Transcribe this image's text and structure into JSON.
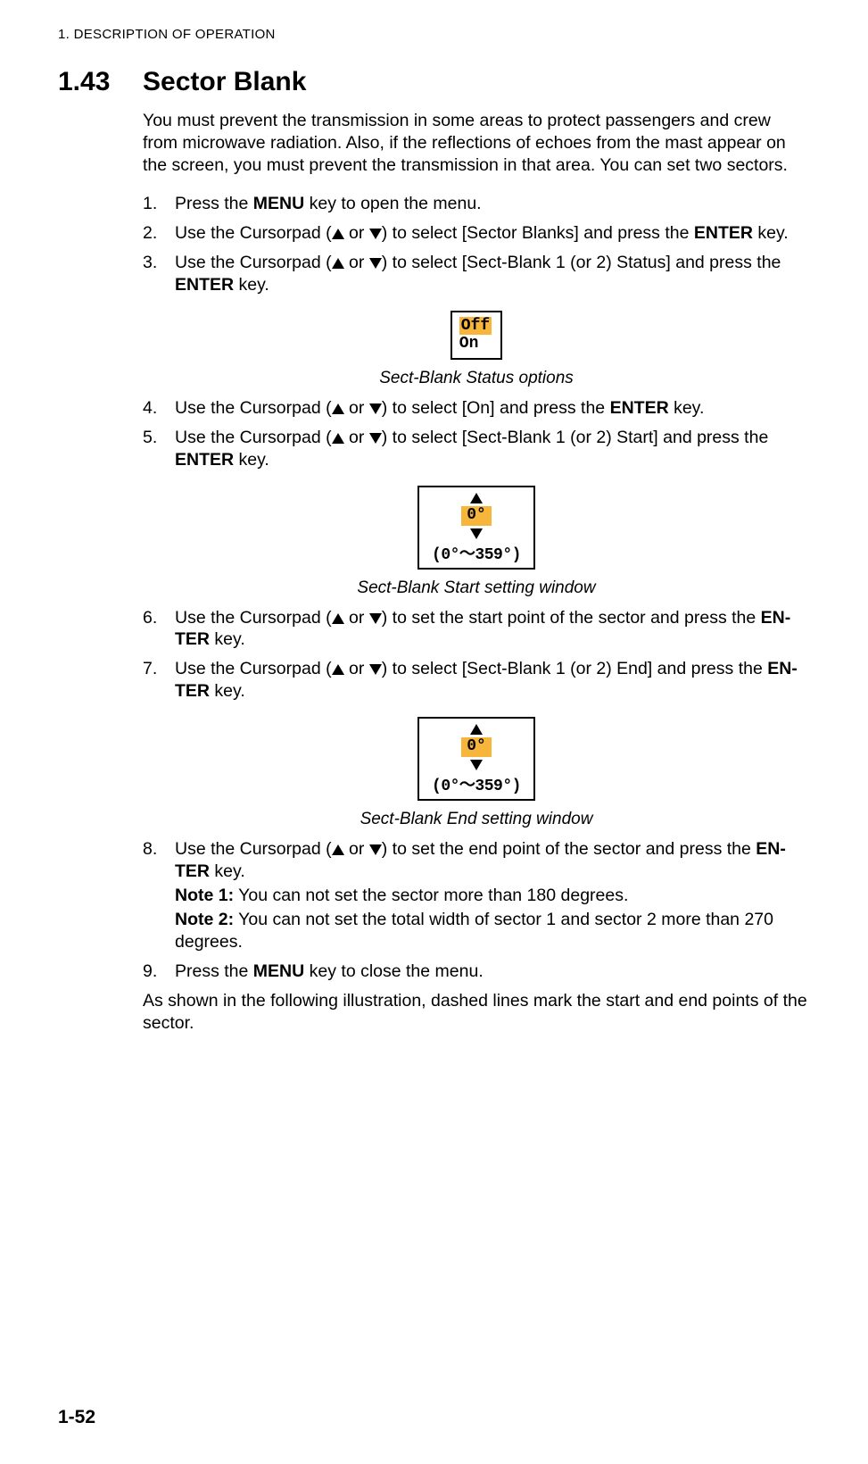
{
  "header": "1.  DESCRIPTION OF OPERATION",
  "section": {
    "num": "1.43",
    "title": "Sector Blank"
  },
  "intro": "You must prevent the transmission in some areas to protect passengers and crew from microwave radiation. Also, if the reflections of echoes from the mast appear on the screen, you must prevent the transmission in that area. You can set two sectors.",
  "steps": {
    "s1": {
      "num": "1.",
      "pre": "Press the ",
      "key": "MENU",
      "post": " key to open the menu."
    },
    "s2": {
      "num": "2.",
      "pre": "Use the Cursorpad (",
      "mid": " or ",
      "post1": ") to select [Sector Blanks] and press the ",
      "key": "ENTER",
      "post2": " key."
    },
    "s3": {
      "num": "3.",
      "pre": "Use the Cursorpad (",
      "mid": " or ",
      "post1": ") to select [Sect-Blank 1 (or 2) Status] and press the ",
      "key": "ENTER",
      "post2": " key."
    },
    "s4": {
      "num": "4.",
      "pre": "Use the Cursorpad (",
      "mid": " or ",
      "post1": ") to select [On] and press the ",
      "key": "ENTER",
      "post2": " key."
    },
    "s5": {
      "num": "5.",
      "pre": "Use the Cursorpad (",
      "mid": " or ",
      "post1": ") to select [Sect-Blank 1 (or 2) Start] and press the ",
      "key": "ENTER",
      "post2": " key."
    },
    "s6": {
      "num": "6.",
      "pre": "Use the Cursorpad (",
      "mid": " or ",
      "post1": ") to set the start point of the sector and press the ",
      "key": "EN-TER",
      "post2": " key."
    },
    "s7": {
      "num": "7.",
      "pre": "Use the Cursorpad (",
      "mid": " or ",
      "post1": ") to select [Sect-Blank 1 (or 2) End] and press the ",
      "key": "EN-TER",
      "post2": " key."
    },
    "s8": {
      "num": "8.",
      "pre": "Use the Cursorpad (",
      "mid": " or ",
      "post1": ") to set the end point of the sector and press the ",
      "key": "EN-TER",
      "post2": " key.",
      "note1_label": "Note 1:",
      "note1_text": " You can not set the sector more than 180 degrees.",
      "note2_label": "Note 2:",
      "note2_text": " You can not set the total width of sector 1 and sector 2 more than 270 degrees."
    },
    "s9": {
      "num": "9.",
      "pre": "Press the ",
      "key": "MENU",
      "post": " key to close the menu."
    }
  },
  "figures": {
    "f1": {
      "opt_off": "Off",
      "opt_on": "On",
      "caption": "Sect-Blank Status options",
      "colors": {
        "border": "#000000",
        "highlight": "#f7b63b",
        "bg": "#ffffff"
      }
    },
    "f2": {
      "value": "0°",
      "range": "(0°～359°)",
      "caption": "Sect-Blank Start setting window",
      "colors": {
        "border": "#000000",
        "highlight": "#f7b63b",
        "bg": "#ffffff"
      }
    },
    "f3": {
      "value": "0°",
      "range": "(0°～359°)",
      "caption": "Sect-Blank End setting window",
      "colors": {
        "border": "#000000",
        "highlight": "#f7b63b",
        "bg": "#ffffff"
      }
    }
  },
  "closing": "As shown in the following illustration, dashed lines mark the start and end points of the sector.",
  "page_num": "1-52"
}
